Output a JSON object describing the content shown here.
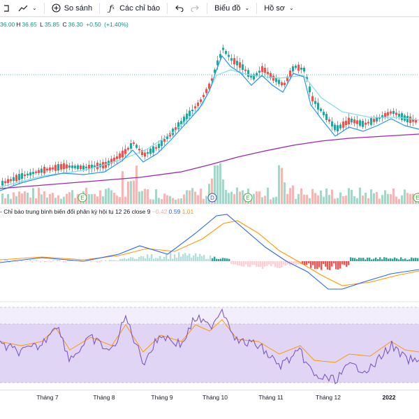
{
  "toolbar": {
    "compare_label": "So sánh",
    "indicators_label": "Các chỉ báo",
    "chart_label": "Biểu đồ",
    "profile_label": "Hồ sơ"
  },
  "ohlc": {
    "o": "36.00",
    "h_label": "H",
    "h": "36.65",
    "l_label": "L",
    "l": "35.85",
    "c_label": "C",
    "c": "36.30",
    "change": "+0.50",
    "change_pct": "(+1.40%)"
  },
  "macd": {
    "title": "- Chỉ báo trung bình biến đổi phân kỳ hội tụ",
    "params": "12 26 close 9",
    "hist_value": "−0.42",
    "macd_value": "0.59",
    "signal_value": "1.01"
  },
  "time_axis": {
    "months": [
      "Tháng 7",
      "Tháng 8",
      "Tháng 9",
      "Tháng 10",
      "Tháng 11",
      "Tháng 12",
      "2022"
    ]
  },
  "markers": [
    "E",
    "D",
    "E",
    "E"
  ],
  "colors": {
    "up": "#26a69a",
    "down": "#ef5350",
    "ma_fast": "#2196f3",
    "ma_slow": "#80deea",
    "ma_long": "#9c27b0",
    "macd_line": "#2962ff",
    "signal_line": "#ff9800",
    "rsi_line": "#7e57c2",
    "rsi_ma": "#ff9800",
    "rsi_band": "#e1d5f5"
  },
  "icons": [
    "zoom-icon",
    "line-chart-icon",
    "add-circle-icon",
    "function-icon",
    "undo-icon",
    "redo-icon"
  ]
}
